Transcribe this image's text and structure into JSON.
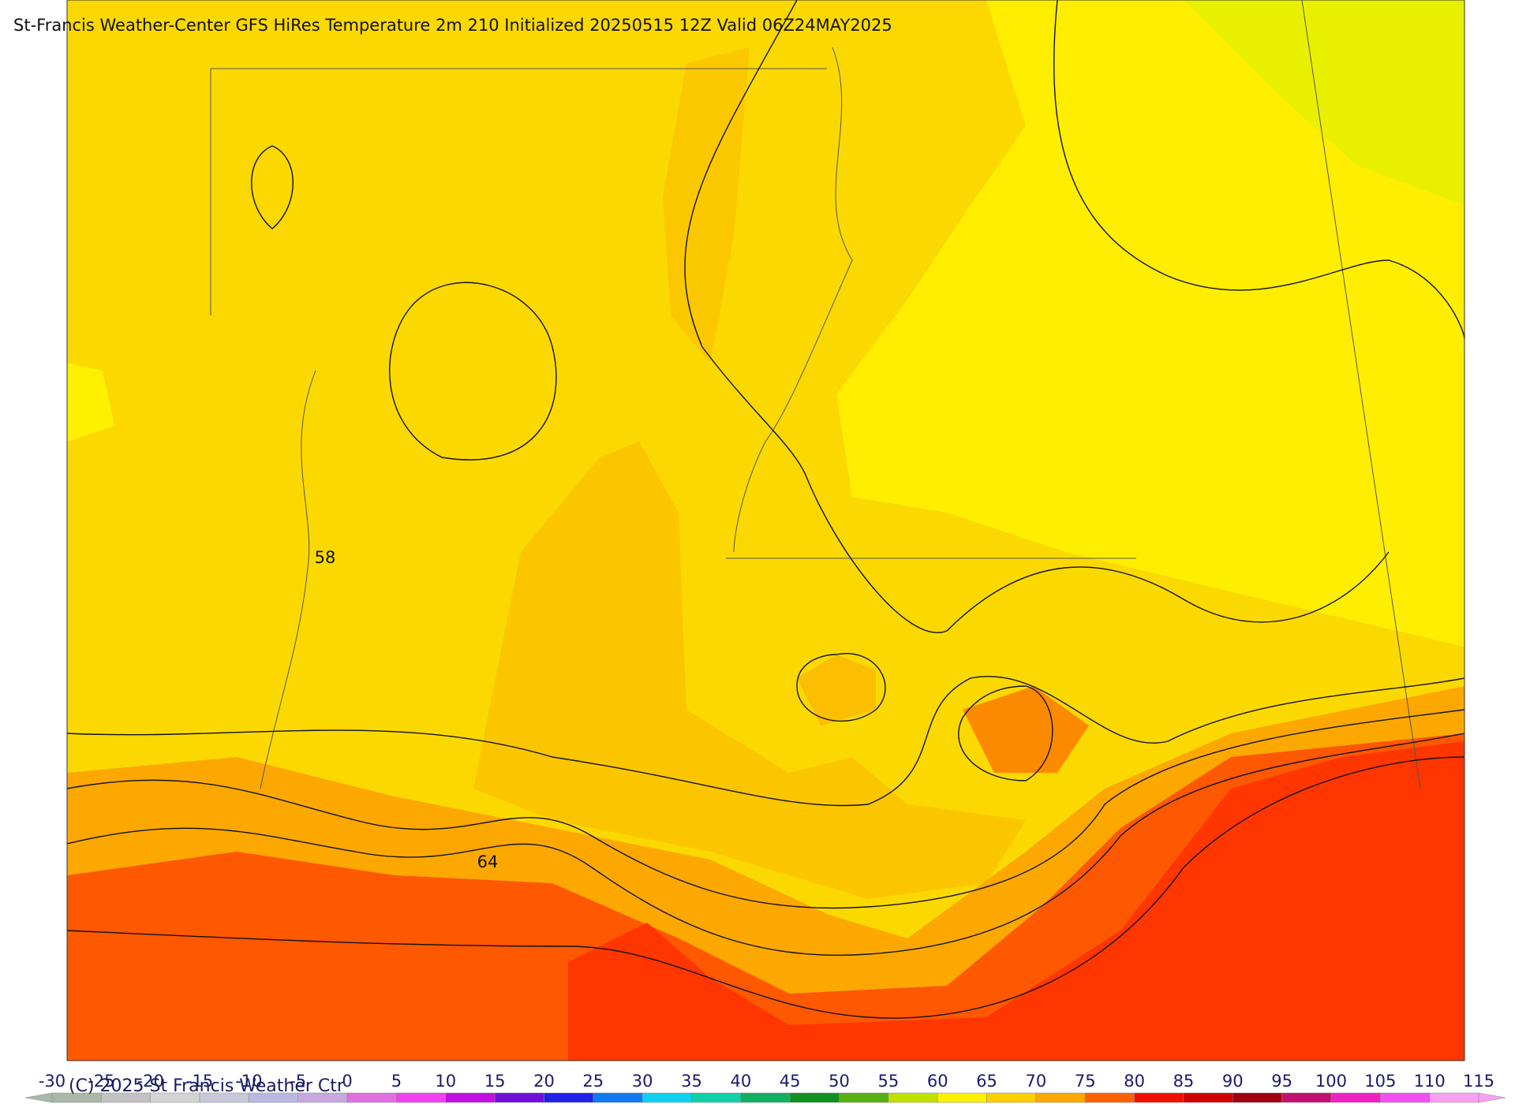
{
  "title": "St-Francis Weather-Center GFS HiRes Temperature 2m  210 Initialized 20250515 12Z Valid 06Z24MAY2025",
  "contour_labels": [
    "58",
    "64"
  ],
  "copyright": "(C) 2025 St Francis Weather Ctr",
  "colorbar": {
    "ticks": [
      -30,
      -25,
      -20,
      -15,
      -10,
      -5,
      0,
      5,
      10,
      15,
      20,
      25,
      30,
      35,
      40,
      45,
      50,
      55,
      60,
      65,
      70,
      75,
      80,
      85,
      90,
      95,
      100,
      105,
      110,
      115
    ],
    "colors": [
      "#a9b8a8",
      "#c2c2c2",
      "#d4d4d4",
      "#c8c8d8",
      "#b8b8e0",
      "#c8a8e0",
      "#e070e0",
      "#f040f0",
      "#c010e0",
      "#7010d8",
      "#2020e8",
      "#1078f0",
      "#10d0f0",
      "#10d0a8",
      "#10b060",
      "#109020",
      "#58b010",
      "#c0e000",
      "#fff000",
      "#fcd000",
      "#fca800",
      "#fc6000",
      "#f01000",
      "#d00000",
      "#a00010",
      "#c01070",
      "#f020c0",
      "#f050f0",
      "#f8a0f0"
    ]
  }
}
